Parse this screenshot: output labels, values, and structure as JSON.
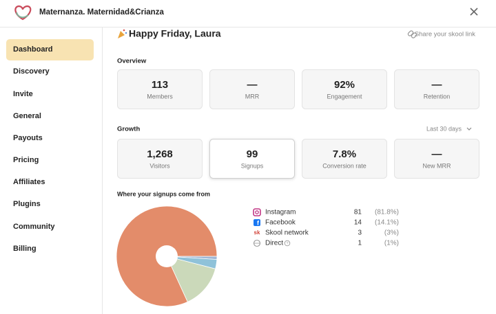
{
  "header": {
    "title": "Maternanza. Maternidad&Crianza"
  },
  "sidebar": {
    "items": [
      "Dashboard",
      "Discovery",
      "Invite",
      "General",
      "Payouts",
      "Pricing",
      "Affiliates",
      "Plugins",
      "Community",
      "Billing"
    ],
    "active": 0
  },
  "greeting": "Happy Friday, Laura",
  "share_link": "Share your skool link",
  "overview": {
    "title": "Overview",
    "cards": [
      {
        "value": "113",
        "label": "Members"
      },
      {
        "value": "—",
        "label": "MRR"
      },
      {
        "value": "92%",
        "label": "Engagement"
      },
      {
        "value": "—",
        "label": "Retention"
      }
    ]
  },
  "growth": {
    "title": "Growth",
    "period": "Last 30 days",
    "selected": 1,
    "cards": [
      {
        "value": "1,268",
        "label": "Visitors"
      },
      {
        "value": "99",
        "label": "Signups"
      },
      {
        "value": "7.8%",
        "label": "Conversion rate"
      },
      {
        "value": "—",
        "label": "New MRR"
      }
    ]
  },
  "sources": {
    "title": "Where your signups come from",
    "items": [
      {
        "name": "Instagram",
        "count": 81,
        "share": "(81.8%)",
        "color": "#e38c6a"
      },
      {
        "name": "Facebook",
        "count": 14,
        "share": "(14.1%)",
        "color": "#cbd9ba"
      },
      {
        "name": "Skool network",
        "count": 3,
        "share": "(3%)",
        "color": "#8fc2d9"
      },
      {
        "name": "Direct",
        "count": 1,
        "share": "(1%)",
        "color": "#9fb6d4"
      }
    ]
  }
}
